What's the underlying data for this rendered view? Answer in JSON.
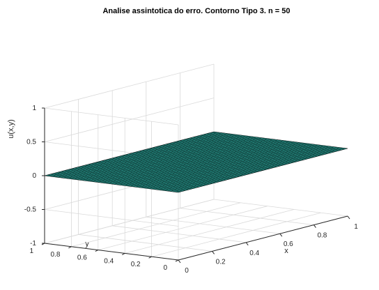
{
  "chart_data": {
    "type": "surface",
    "title": "Analise assintotica do erro. Contorno Tipo 3. n = 50",
    "xlabel": "x",
    "ylabel": "y",
    "zlabel": "u(x,y)",
    "xlim": [
      0,
      1
    ],
    "ylim": [
      0,
      1
    ],
    "zlim": [
      -1,
      1
    ],
    "x_ticks": [
      "0",
      "0.2",
      "0.4",
      "0.6",
      "0.8",
      "1"
    ],
    "y_ticks": [
      "0",
      "0.2",
      "0.4",
      "0.6",
      "0.8",
      "1"
    ],
    "z_ticks": [
      "-1",
      "-0.5",
      "0",
      "0.5",
      "1"
    ],
    "grid": true,
    "n": 50,
    "surface_value": 0,
    "face_color": "#2a9d93",
    "edge_color": "#000000"
  }
}
